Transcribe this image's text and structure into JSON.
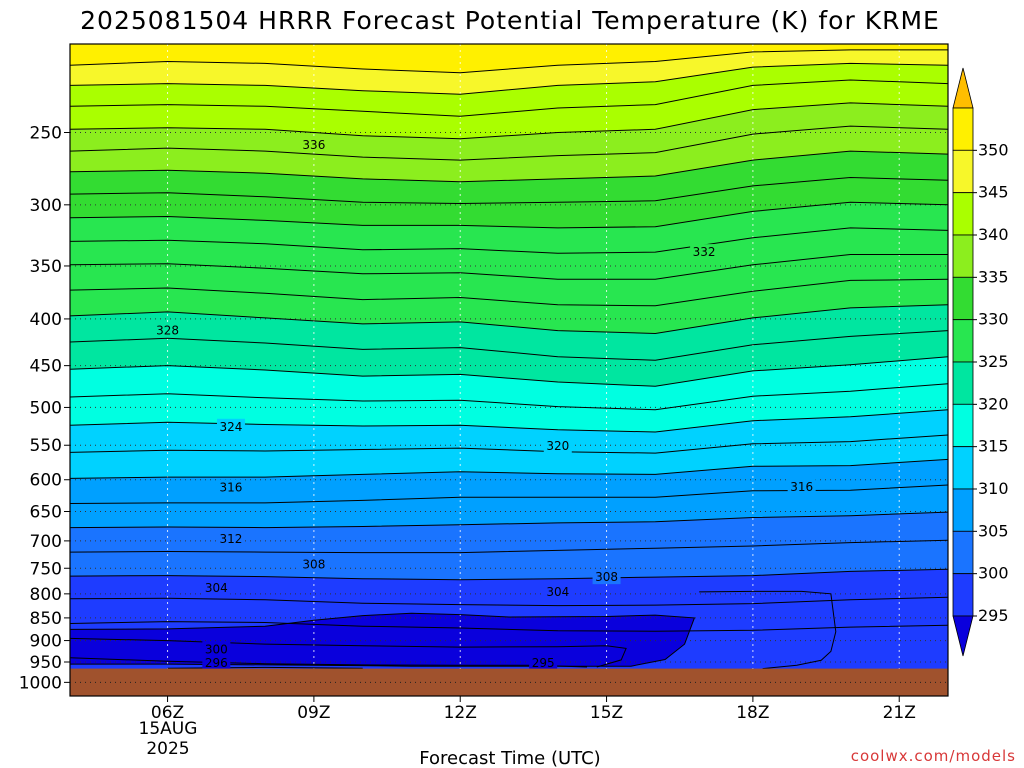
{
  "chart_data": {
    "type": "heatmap",
    "title": "2025081504 HRRR Forecast Potential Temperature (K) for KRME",
    "xlabel": "Forecast Time (UTC)",
    "ylabel": "",
    "watermark": "coolwx.com/models",
    "x_ticks": [
      {
        "hour": 6,
        "label": "06Z"
      },
      {
        "hour": 9,
        "label": "09Z"
      },
      {
        "hour": 12,
        "label": "12Z"
      },
      {
        "hour": 15,
        "label": "15Z"
      },
      {
        "hour": 18,
        "label": "18Z"
      },
      {
        "hour": 21,
        "label": "21Z"
      }
    ],
    "date_label": [
      "15AUG",
      "2025"
    ],
    "xlim_hours": [
      4,
      22
    ],
    "y_axis": {
      "scale": "log-pressure",
      "unit": "hPa",
      "inverted": true,
      "top": 200,
      "bottom": 1035
    },
    "y_ticks": [
      250,
      300,
      350,
      400,
      450,
      500,
      550,
      600,
      650,
      700,
      750,
      800,
      850,
      900,
      950,
      1000
    ],
    "surface_pressure_hPa": 966,
    "surface_color": "#a0522d",
    "colorbar": {
      "levels": [
        295,
        300,
        305,
        310,
        315,
        320,
        325,
        330,
        335,
        340,
        345,
        350
      ],
      "fills": [
        "#0a00dc",
        "#1e3cff",
        "#1a74ff",
        "#00a0ff",
        "#00d2ff",
        "#00ffe1",
        "#00e6a0",
        "#28e650",
        "#33dc32",
        "#8cee1e",
        "#aaff00",
        "#f7f72a",
        "#fff000",
        "#ffbe00"
      ]
    },
    "grid": "dotted",
    "contour_interval_K": 2,
    "contour_labels": [
      {
        "hour": 7.0,
        "hPa": 920,
        "value": "300"
      },
      {
        "hour": 7.0,
        "hPa": 952,
        "value": "296"
      },
      {
        "hour": 7.0,
        "hPa": 788,
        "value": "304"
      },
      {
        "hour": 7.3,
        "hPa": 697,
        "value": "312"
      },
      {
        "hour": 7.3,
        "hPa": 612,
        "value": "316"
      },
      {
        "hour": 7.3,
        "hPa": 525,
        "value": "324"
      },
      {
        "hour": 6.0,
        "hPa": 412,
        "value": "328"
      },
      {
        "hour": 9.0,
        "hPa": 743,
        "value": "308"
      },
      {
        "hour": 9.0,
        "hPa": 258,
        "value": "336"
      },
      {
        "hour": 13.7,
        "hPa": 952,
        "value": "295"
      },
      {
        "hour": 14.0,
        "hPa": 796,
        "value": "304"
      },
      {
        "hour": 14.0,
        "hPa": 551,
        "value": "320"
      },
      {
        "hour": 15.0,
        "hPa": 767,
        "value": "308"
      },
      {
        "hour": 17.0,
        "hPa": 338,
        "value": "332"
      },
      {
        "hour": 19.0,
        "hPa": 611,
        "value": "316"
      }
    ],
    "contour_lines_hPa": [
      [
        211,
        209,
        210,
        213,
        215,
        211,
        209,
        204,
        203,
        203
      ],
      [
        222,
        221,
        222,
        225,
        227,
        222,
        220,
        212,
        210,
        211
      ],
      [
        234,
        233,
        234,
        237,
        240,
        235,
        233,
        222,
        219,
        221
      ],
      [
        248,
        247,
        248,
        252,
        254,
        250,
        248,
        236,
        232,
        234
      ],
      [
        262,
        260,
        262,
        266,
        268,
        265,
        263,
        251,
        246,
        248
      ],
      [
        276,
        275,
        277,
        281,
        283,
        281,
        279,
        268,
        262,
        264
      ],
      [
        292,
        291,
        294,
        298,
        299,
        298,
        297,
        286,
        280,
        282
      ],
      [
        310,
        309,
        312,
        316,
        316,
        318,
        317,
        305,
        298,
        300
      ],
      [
        329,
        328,
        331,
        336,
        335,
        339,
        338,
        326,
        318,
        320
      ],
      [
        349,
        348,
        352,
        357,
        356,
        362,
        362,
        349,
        340,
        340
      ],
      [
        372,
        370,
        375,
        381,
        379,
        386,
        387,
        373,
        363,
        362
      ],
      [
        397,
        393,
        399,
        405,
        403,
        412,
        415,
        399,
        389,
        386
      ],
      [
        424,
        420,
        425,
        432,
        430,
        440,
        444,
        427,
        418,
        412
      ],
      [
        454,
        450,
        455,
        462,
        460,
        469,
        474,
        456,
        449,
        440
      ],
      [
        487,
        483,
        488,
        492,
        491,
        499,
        503,
        486,
        480,
        471
      ],
      [
        523,
        519,
        522,
        524,
        523,
        529,
        532,
        517,
        512,
        503
      ],
      [
        560,
        557,
        558,
        556,
        554,
        559,
        561,
        548,
        545,
        536
      ],
      [
        598,
        596,
        596,
        592,
        588,
        591,
        592,
        580,
        579,
        570
      ],
      [
        637,
        636,
        636,
        632,
        627,
        627,
        627,
        617,
        616,
        608
      ],
      [
        677,
        676,
        677,
        675,
        672,
        669,
        667,
        660,
        657,
        651
      ],
      [
        720,
        719,
        720,
        721,
        721,
        717,
        713,
        709,
        703,
        699
      ],
      [
        765,
        764,
        766,
        770,
        772,
        770,
        767,
        764,
        756,
        752
      ],
      [
        810,
        809,
        812,
        819,
        822,
        824,
        823,
        820,
        812,
        807
      ],
      [
        862,
        858,
        860,
        868,
        872,
        878,
        879,
        877,
        870,
        866
      ]
    ],
    "cold_pocket_contours": [
      [
        [
          4,
          875
        ],
        [
          6,
          874
        ],
        [
          8,
          868
        ],
        [
          9,
          855
        ],
        [
          10,
          845
        ],
        [
          11,
          840
        ],
        [
          12,
          843
        ],
        [
          13,
          848
        ],
        [
          15,
          847
        ],
        [
          16,
          844
        ],
        [
          16.8,
          850
        ],
        [
          16.6,
          908
        ],
        [
          16.2,
          944
        ],
        [
          15.5,
          960
        ],
        [
          14,
          960
        ],
        [
          11,
          960
        ],
        [
          9,
          958
        ],
        [
          6,
          955
        ],
        [
          4,
          955
        ]
      ],
      [
        [
          4,
          895
        ],
        [
          6,
          900
        ],
        [
          8,
          908
        ],
        [
          10,
          912
        ],
        [
          12,
          915
        ],
        [
          14,
          914
        ],
        [
          15,
          912
        ],
        [
          15.4,
          918
        ],
        [
          15.3,
          945
        ],
        [
          14.8,
          962
        ]
      ],
      [
        [
          4,
          940
        ],
        [
          6,
          948
        ],
        [
          8,
          954
        ],
        [
          10,
          957
        ],
        [
          12,
          958
        ],
        [
          13.5,
          958
        ],
        [
          14.6,
          962
        ]
      ],
      [
        [
          6,
          965
        ],
        [
          8,
          963
        ],
        [
          10,
          965
        ]
      ],
      [
        [
          16.9,
          796
        ],
        [
          18,
          795
        ],
        [
          19,
          795
        ],
        [
          19.6,
          800
        ],
        [
          19.7,
          880
        ],
        [
          19.6,
          925
        ],
        [
          19.4,
          946
        ],
        [
          18.9,
          958
        ],
        [
          18.2,
          966
        ]
      ]
    ]
  }
}
